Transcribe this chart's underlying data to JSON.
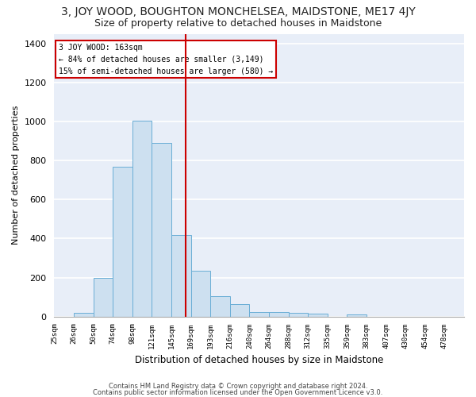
{
  "title": "3, JOY WOOD, BOUGHTON MONCHELSEA, MAIDSTONE, ME17 4JY",
  "subtitle": "Size of property relative to detached houses in Maidstone",
  "xlabel": "Distribution of detached houses by size in Maidstone",
  "ylabel": "Number of detached properties",
  "bin_labels": [
    "25sqm",
    "26sqm",
    "50sqm",
    "74sqm",
    "98sqm",
    "121sqm",
    "145sqm",
    "169sqm",
    "193sqm",
    "216sqm",
    "240sqm",
    "264sqm",
    "288sqm",
    "312sqm",
    "335sqm",
    "359sqm",
    "383sqm",
    "407sqm",
    "430sqm",
    "454sqm",
    "478sqm"
  ],
  "bar_heights": [
    0,
    20,
    200,
    770,
    1005,
    890,
    420,
    235,
    105,
    65,
    25,
    25,
    20,
    15,
    0,
    10,
    0,
    0,
    0,
    0,
    0
  ],
  "bar_color": "#cde0f0",
  "bar_edge_color": "#6aaed6",
  "red_line_after_bar": 6,
  "annotation_title": "3 JOY WOOD: 163sqm",
  "annotation_line1": "← 84% of detached houses are smaller (3,149)",
  "annotation_line2": "15% of semi-detached houses are larger (580) →",
  "annotation_box_color": "#ffffff",
  "annotation_box_edge": "#cc0000",
  "red_line_color": "#cc0000",
  "ylim": [
    0,
    1450
  ],
  "yticks": [
    0,
    200,
    400,
    600,
    800,
    1000,
    1200,
    1400
  ],
  "background_color": "#e8eef8",
  "grid_color": "#ffffff",
  "footer1": "Contains HM Land Registry data © Crown copyright and database right 2024.",
  "footer2": "Contains public sector information licensed under the Open Government Licence v3.0.",
  "title_fontsize": 10,
  "subtitle_fontsize": 9
}
